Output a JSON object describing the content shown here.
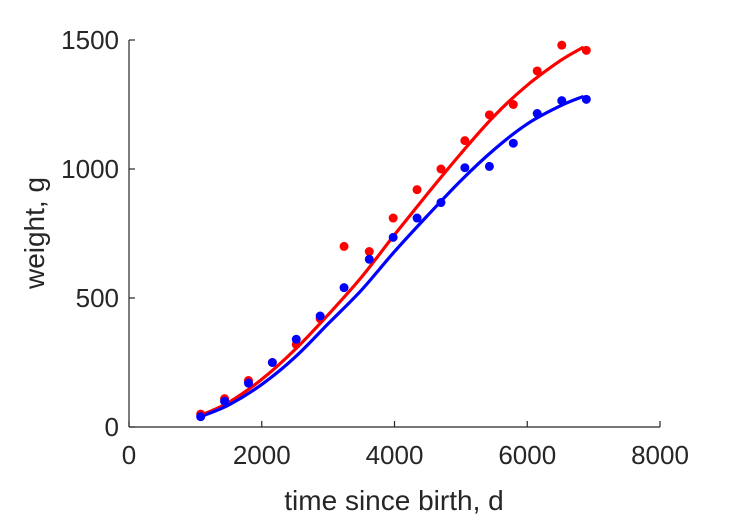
{
  "chart_data": {
    "type": "scatter",
    "title": "",
    "xlabel": "time since birth, d",
    "ylabel": "weight, g",
    "xlim": [
      0,
      8000
    ],
    "ylim": [
      0,
      1500
    ],
    "xticks": [
      0,
      2000,
      4000,
      6000,
      8000
    ],
    "yticks": [
      0,
      500,
      1000,
      1500
    ],
    "xtick_labels": [
      "0",
      "2000",
      "4000",
      "6000",
      "8000"
    ],
    "ytick_labels": [
      "0",
      "500",
      "1000",
      "1500"
    ],
    "grid": false,
    "legend": "none",
    "series": [
      {
        "color": "#ff0000",
        "points": {
          "x": [
            1080,
            1440,
            1800,
            2160,
            2520,
            2880,
            3240,
            3620,
            3980,
            4340,
            4700,
            5060,
            5430,
            5790,
            6150,
            6520,
            6890
          ],
          "y": [
            50,
            110,
            180,
            250,
            320,
            420,
            700,
            680,
            810,
            920,
            1000,
            1110,
            1210,
            1250,
            1380,
            1480,
            1460
          ]
        },
        "fit": {
          "x": [
            1080,
            1500,
            2000,
            2500,
            3000,
            3500,
            4000,
            4500,
            5000,
            5500,
            6000,
            6500,
            6830
          ],
          "y": [
            45,
            95,
            185,
            300,
            435,
            580,
            745,
            905,
            1060,
            1205,
            1325,
            1420,
            1470
          ]
        }
      },
      {
        "color": "#0000ff",
        "points": {
          "x": [
            1080,
            1440,
            1800,
            2160,
            2520,
            2880,
            3240,
            3620,
            3980,
            4340,
            4700,
            5060,
            5430,
            5790,
            6150,
            6520,
            6890
          ],
          "y": [
            40,
            100,
            170,
            250,
            340,
            430,
            540,
            650,
            735,
            810,
            870,
            1005,
            1010,
            1100,
            1215,
            1265,
            1270
          ]
        },
        "fit": {
          "x": [
            1080,
            1500,
            2000,
            2500,
            3000,
            3500,
            4000,
            4500,
            5000,
            5500,
            6000,
            6500,
            6830
          ],
          "y": [
            40,
            85,
            165,
            270,
            400,
            530,
            680,
            820,
            955,
            1075,
            1175,
            1245,
            1280
          ]
        }
      }
    ]
  }
}
